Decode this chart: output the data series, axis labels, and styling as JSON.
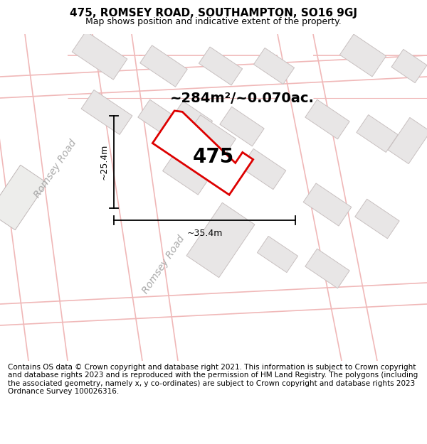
{
  "title": "475, ROMSEY ROAD, SOUTHAMPTON, SO16 9GJ",
  "subtitle": "Map shows position and indicative extent of the property.",
  "footer": "Contains OS data © Crown copyright and database right 2021. This information is subject to Crown copyright and database rights 2023 and is reproduced with the permission of HM Land Registry. The polygons (including the associated geometry, namely x, y co-ordinates) are subject to Crown copyright and database rights 2023 Ordnance Survey 100026316.",
  "map_bg": "#f7f6f6",
  "road_color": "#f0b8b8",
  "building_fill": "#e8e6e6",
  "building_stroke": "#c8c0c0",
  "highlight_color": "#dd0000",
  "label_475": "475",
  "area_text": "~284m²/~0.070ac.",
  "dim_h": "~25.4m",
  "dim_w": "~35.4m",
  "road_label_1": "Romsey Road",
  "road_label_2": "Romsey Road",
  "title_fontsize": 11,
  "subtitle_fontsize": 9,
  "footer_fontsize": 7.5
}
